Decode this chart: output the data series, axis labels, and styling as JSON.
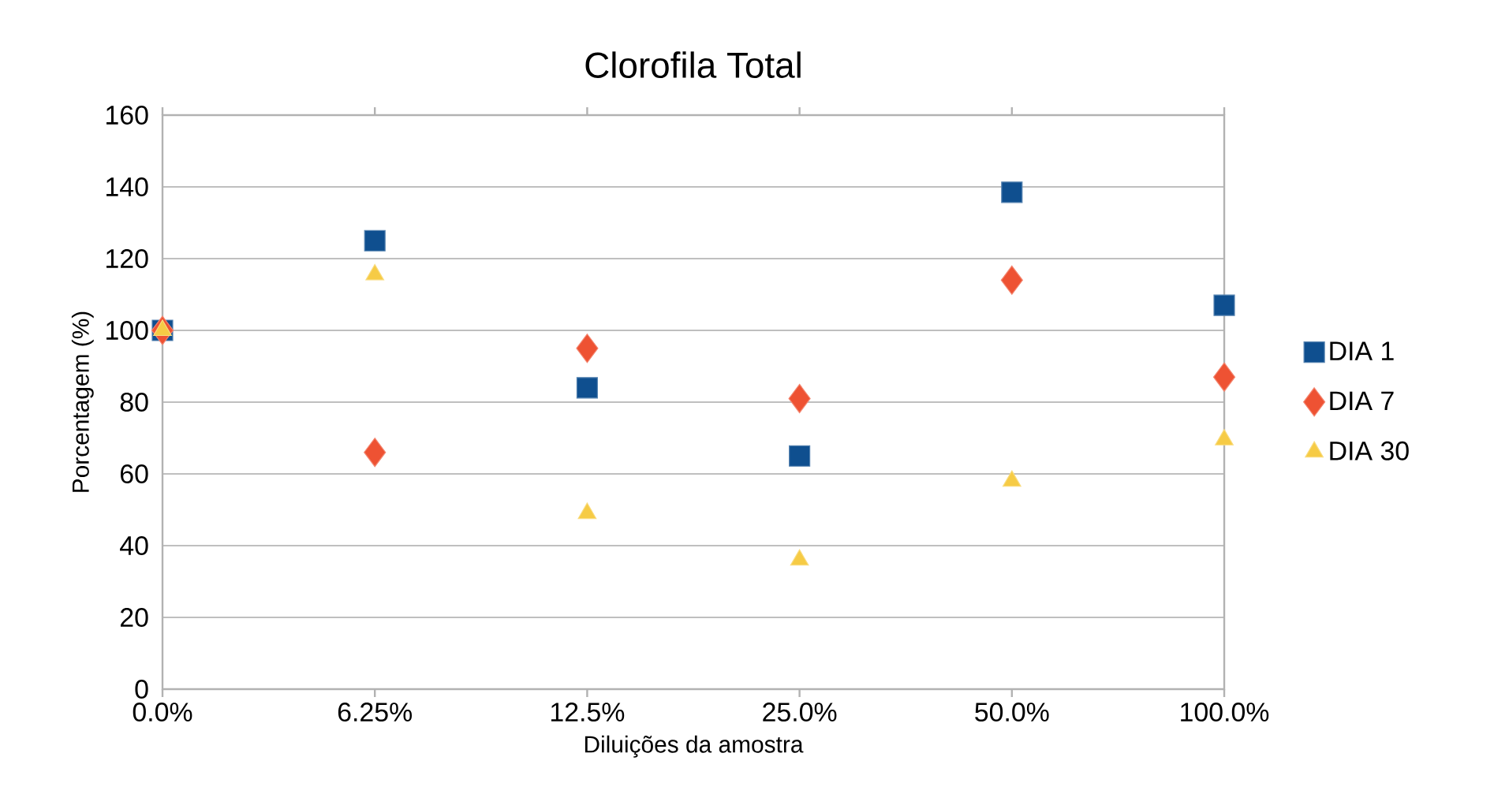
{
  "chart_data": {
    "type": "scatter",
    "title": "Clorofila Total",
    "xlabel": "Diluições da amostra",
    "ylabel": "Porcentagem (%)",
    "categories": [
      "0.0%",
      "6.25%",
      "12.5%",
      "25.0%",
      "50.0%",
      "100.0%"
    ],
    "series": [
      {
        "name": "DIA 1",
        "color": "#0f4f8f",
        "marker": "square",
        "values": [
          100,
          125,
          84,
          65,
          138.5,
          107
        ]
      },
      {
        "name": "DIA 7",
        "color": "#ee5233",
        "marker": "diamond",
        "values": [
          100,
          66,
          95,
          81,
          114,
          87
        ]
      },
      {
        "name": "DIA 30",
        "color": "#f6cb45",
        "marker": "triangle",
        "values": [
          100,
          115.5,
          49,
          36,
          58,
          69.5
        ]
      }
    ],
    "ylim": [
      0,
      160
    ],
    "yticks": [
      0,
      20,
      40,
      60,
      80,
      100,
      120,
      140,
      160
    ],
    "grid": "y",
    "legend": "right"
  }
}
